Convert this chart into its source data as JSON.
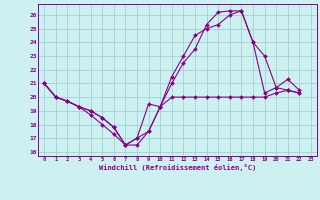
{
  "xlabel": "Windchill (Refroidissement éolien,°C)",
  "background_color": "#cdf0f0",
  "line_color": "#880088",
  "grid_color": "#99cccc",
  "xlim": [
    -0.5,
    23.5
  ],
  "ylim": [
    15.7,
    26.8
  ],
  "yticks": [
    16,
    17,
    18,
    19,
    20,
    21,
    22,
    23,
    24,
    25,
    26
  ],
  "xticks": [
    0,
    1,
    2,
    3,
    4,
    5,
    6,
    7,
    8,
    9,
    10,
    11,
    12,
    13,
    14,
    15,
    16,
    17,
    18,
    19,
    20,
    21,
    22,
    23
  ],
  "series": [
    {
      "x": [
        0,
        1,
        2,
        3,
        4,
        5,
        6,
        7,
        8,
        9,
        10,
        11,
        12,
        13,
        14,
        15,
        16,
        17,
        18,
        19,
        20,
        21,
        22
      ],
      "y": [
        21.0,
        20.0,
        19.7,
        19.3,
        19.0,
        18.5,
        17.8,
        16.5,
        16.5,
        17.5,
        19.3,
        21.0,
        22.5,
        23.5,
        25.3,
        26.2,
        26.3,
        26.3,
        24.0,
        20.3,
        20.7,
        21.3,
        20.5
      ]
    },
    {
      "x": [
        0,
        1,
        2,
        3,
        4,
        5,
        6,
        7,
        8,
        9,
        10,
        11,
        12,
        13,
        14,
        15,
        16,
        17,
        18,
        19,
        20,
        21,
        22
      ],
      "y": [
        21.0,
        20.0,
        19.7,
        19.3,
        18.7,
        18.0,
        17.3,
        16.5,
        17.0,
        19.5,
        19.3,
        21.5,
        23.0,
        24.5,
        25.0,
        25.3,
        26.0,
        26.3,
        24.0,
        23.0,
        20.7,
        20.5,
        20.3
      ]
    },
    {
      "x": [
        0,
        1,
        2,
        3,
        4,
        5,
        6,
        7,
        8,
        9,
        10,
        11,
        12,
        13,
        14,
        15,
        16,
        17,
        18,
        19,
        20,
        21,
        22
      ],
      "y": [
        21.0,
        20.0,
        19.7,
        19.3,
        19.0,
        18.5,
        17.8,
        16.5,
        17.0,
        17.5,
        19.3,
        20.0,
        20.0,
        20.0,
        20.0,
        20.0,
        20.0,
        20.0,
        20.0,
        20.0,
        20.3,
        20.5,
        20.3
      ]
    }
  ]
}
